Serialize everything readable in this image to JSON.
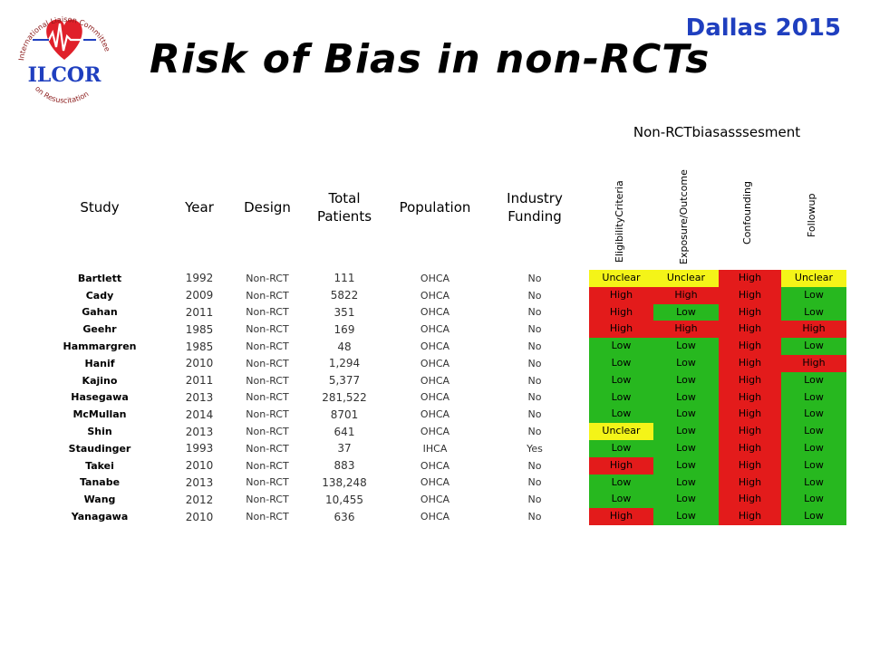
{
  "logo": {
    "ring_text": "International Liaison Committee on Resuscitation",
    "wordmark": "ILCOR"
  },
  "event": "Dallas 2015",
  "title": "Risk of Bias in non-RCTs",
  "colors": {
    "low": "#27b81f",
    "high": "#e31b1b",
    "unclear": "#f4f418",
    "event": "#1f3fbf"
  },
  "table": {
    "group_title": "Non-RCTbiasasssesment",
    "headers": {
      "study": "Study",
      "year": "Year",
      "design": "Design",
      "total_1": "Total",
      "total_2": "Patients",
      "population": "Population",
      "funding_1": "Industry",
      "funding_2": "Funding",
      "eligibility": "EligibilityCriteria",
      "exposure": "Exposure/Outcome",
      "confounding": "Confounding",
      "follow": "Followup"
    },
    "rows": [
      {
        "study": "Bartlett",
        "year": "1992",
        "design": "Non-RCT",
        "total": "111",
        "population": "OHCA",
        "funding": "No",
        "elig": "Unclear",
        "exp": "Unclear",
        "conf": "High",
        "follow": "Unclear"
      },
      {
        "study": "Cady",
        "year": "2009",
        "design": "Non-RCT",
        "total": "5822",
        "population": "OHCA",
        "funding": "No",
        "elig": "High",
        "exp": "High",
        "conf": "High",
        "follow": "Low"
      },
      {
        "study": "Gahan",
        "year": "2011",
        "design": "Non-RCT",
        "total": "351",
        "population": "OHCA",
        "funding": "No",
        "elig": "High",
        "exp": "Low",
        "conf": "High",
        "follow": "Low"
      },
      {
        "study": "Geehr",
        "year": "1985",
        "design": "Non-RCT",
        "total": "169",
        "population": "OHCA",
        "funding": "No",
        "elig": "High",
        "exp": "High",
        "conf": "High",
        "follow": "High"
      },
      {
        "study": "Hammargren",
        "year": "1985",
        "design": "Non-RCT",
        "total": "48",
        "population": "OHCA",
        "funding": "No",
        "elig": "Low",
        "exp": "Low",
        "conf": "High",
        "follow": "Low"
      },
      {
        "study": "Hanif",
        "year": "2010",
        "design": "Non-RCT",
        "total": "1,294",
        "population": "OHCA",
        "funding": "No",
        "elig": "Low",
        "exp": "Low",
        "conf": "High",
        "follow": "High"
      },
      {
        "study": "Kajino",
        "year": "2011",
        "design": "Non-RCT",
        "total": "5,377",
        "population": "OHCA",
        "funding": "No",
        "elig": "Low",
        "exp": "Low",
        "conf": "High",
        "follow": "Low"
      },
      {
        "study": "Hasegawa",
        "year": "2013",
        "design": "Non-RCT",
        "total": "281,522",
        "population": "OHCA",
        "funding": "No",
        "elig": "Low",
        "exp": "Low",
        "conf": "High",
        "follow": "Low"
      },
      {
        "study": "McMullan",
        "year": "2014",
        "design": "Non-RCT",
        "total": "8701",
        "population": "OHCA",
        "funding": "No",
        "elig": "Low",
        "exp": "Low",
        "conf": "High",
        "follow": "Low"
      },
      {
        "study": "Shin",
        "year": "2013",
        "design": "Non-RCT",
        "total": "641",
        "population": "OHCA",
        "funding": "No",
        "elig": "Unclear",
        "exp": "Low",
        "conf": "High",
        "follow": "Low"
      },
      {
        "study": "Staudinger",
        "year": "1993",
        "design": "Non-RCT",
        "total": "37",
        "population": "IHCA",
        "funding": "Yes",
        "elig": "Low",
        "exp": "Low",
        "conf": "High",
        "follow": "Low"
      },
      {
        "study": "Takei",
        "year": "2010",
        "design": "Non-RCT",
        "total": "883",
        "population": "OHCA",
        "funding": "No",
        "elig": "High",
        "exp": "Low",
        "conf": "High",
        "follow": "Low"
      },
      {
        "study": "Tanabe",
        "year": "2013",
        "design": "Non-RCT",
        "total": "138,248",
        "population": "OHCA",
        "funding": "No",
        "elig": "Low",
        "exp": "Low",
        "conf": "High",
        "follow": "Low"
      },
      {
        "study": "Wang",
        "year": "2012",
        "design": "Non-RCT",
        "total": "10,455",
        "population": "OHCA",
        "funding": "No",
        "elig": "Low",
        "exp": "Low",
        "conf": "High",
        "follow": "Low"
      },
      {
        "study": "Yanagawa",
        "year": "2010",
        "design": "Non-RCT",
        "total": "636",
        "population": "OHCA",
        "funding": "No",
        "elig": "High",
        "exp": "Low",
        "conf": "High",
        "follow": "Low"
      }
    ]
  }
}
